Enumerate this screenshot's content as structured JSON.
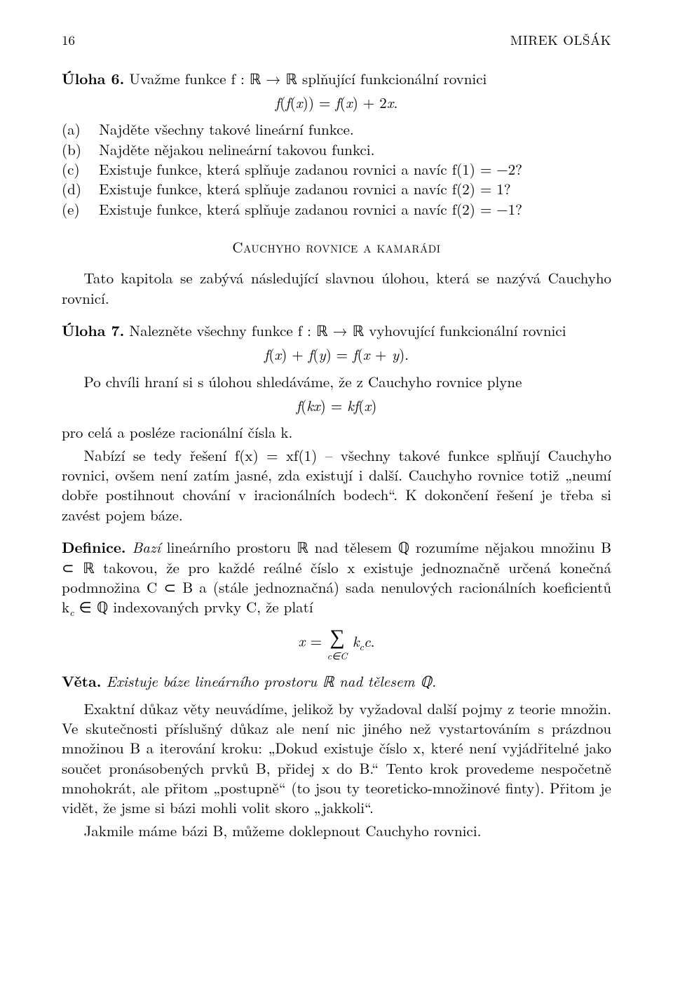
{
  "page_number": "16",
  "author": "MIREK OLŠÁK",
  "uloha6_title": "Úloha 6.",
  "uloha6_text": " Uvažme funkce f : ℝ → ℝ splňující funkcionální rovnici",
  "uloha6_eq": "f(f(x)) = f(x) + 2x.",
  "uloha6_a": "(a)",
  "uloha6_a_text": " Najděte všechny takové lineární funkce.",
  "uloha6_b": "(b)",
  "uloha6_b_text": " Najděte nějakou nelineární takovou funkci.",
  "uloha6_c": "(c)",
  "uloha6_c_text": " Existuje funkce, která splňuje zadanou rovnici a navíc f(1) = −2?",
  "uloha6_d": "(d)",
  "uloha6_d_text": " Existuje funkce, která splňuje zadanou rovnici a navíc f(2) = 1?",
  "uloha6_e": "(e)",
  "uloha6_e_text": " Existuje funkce, která splňuje zadanou rovnici a navíc f(2) = −1?",
  "section_title": "Cauchyho rovnice a kamarádi",
  "cauchy_intro": "Tato kapitola se zabývá následující slavnou úlohou, která se nazývá Cauchyho rovnicí.",
  "uloha7_title": "Úloha 7.",
  "uloha7_text": " Nalezněte všechny funkce f : ℝ → ℝ vyhovující funkcionální rovnici",
  "uloha7_eq": "f(x) + f(y) = f(x + y).",
  "cauchy_p1": "Po chvíli hraní si s úlohou shledáváme, že z Cauchyho rovnice plyne",
  "cauchy_eq2": "f(kx) = kf(x)",
  "cauchy_p2": "pro celá a posléze racionální čísla k.",
  "cauchy_p3": "Nabízí se tedy řešení f(x) = xf(1) – všechny takové funkce splňují Cauchyho rovnici, ovšem není zatím jasné, zda existují i další. Cauchyho rovnice totiž „neumí dobře postihnout chování v iracionálních bodech“. K dokončení řešení je třeba si zavést pojem báze.",
  "def_title": "Definice.",
  "def_text_1": "Bazí",
  "def_text_2": " lineárního prostoru ℝ nad tělesem ℚ rozumíme nějakou množinu B ⊂ ℝ takovou, že pro každé reálné číslo x existuje jednoznačně určená konečná podmnožina C ⊂ B a (stále jednoznačná) sada nenulových racionálních koeficientů k",
  "def_text_3": " ∈ ℚ indexovaných prvky C, že platí",
  "def_sub": "c",
  "veta_title": "Věta.",
  "veta_text": " Existuje báze lineárního prostoru ℝ nad tělesem ℚ.",
  "final_p1": "Exaktní důkaz věty neuvádíme, jelikož by vyžadoval další pojmy z teorie množin. Ve skutečnosti příslušný důkaz ale není nic jiného než vystartováním s prázdnou množinou B a iterování kroku: „Dokud existuje číslo x, které není vyjádřitelné jako součet pronásobených prvků B, přidej x do B.“ Tento krok provedeme nespočetně mnohokrát, ale přitom „postupně“ (to jsou ty teoreticko-množinové finty). Přitom je vidět, že jsme si bázi mohli volit skoro „jakkoli“.",
  "final_p2": "Jakmile máme bázi B, můžeme doklepnout Cauchyho rovnici."
}
